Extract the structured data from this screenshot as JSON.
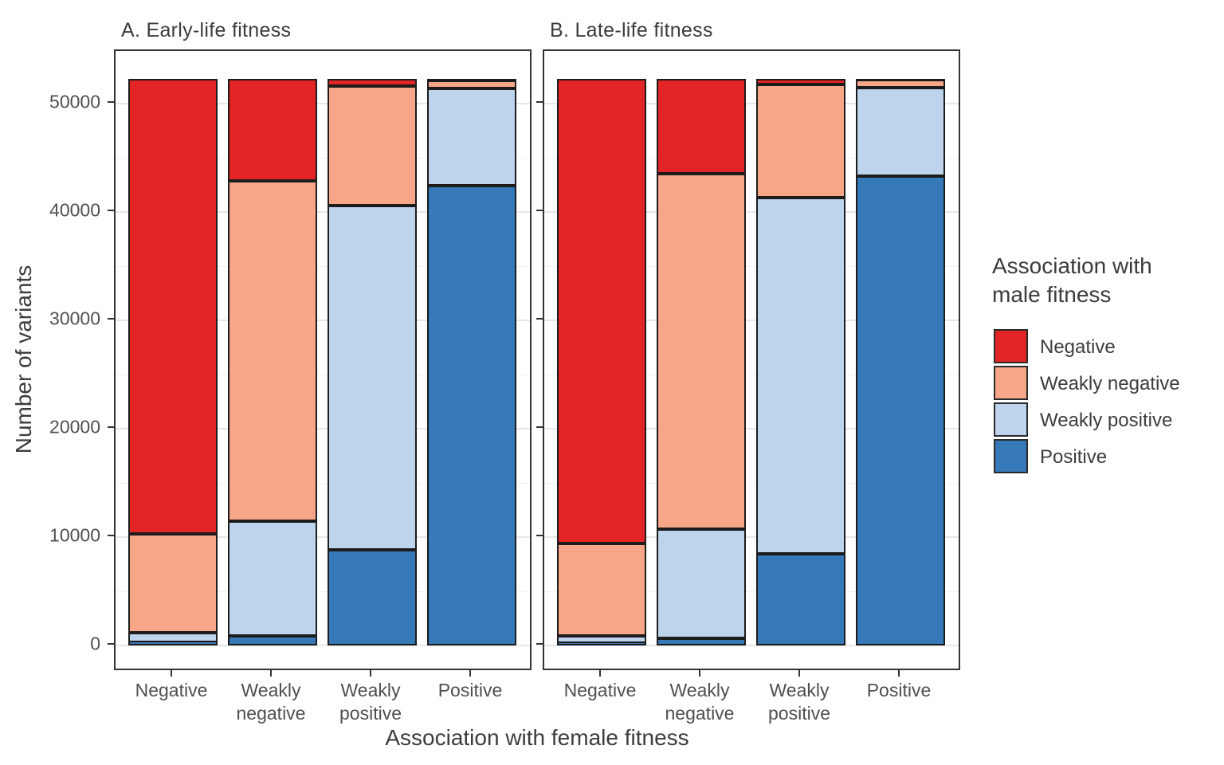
{
  "figure": {
    "kind": "two-panel stacked bar chart",
    "background": "#ffffff"
  },
  "axes": {
    "y_title": "Number of variants",
    "x_title": "Association with female fitness",
    "yticks": [
      0,
      10000,
      20000,
      30000,
      40000,
      50000
    ],
    "ytick_labels": [
      "0",
      "10000",
      "20000",
      "30000",
      "40000",
      "50000"
    ],
    "ylim": [
      0,
      54850
    ],
    "grid": "major and minor horizontal gridlines, light gray on white"
  },
  "legend": {
    "title_lines": [
      "Association with",
      "male fitness"
    ],
    "position": "right",
    "items": [
      {
        "label": "Negative",
        "color": "#E32425"
      },
      {
        "label": "Weakly negative",
        "color": "#F7A687"
      },
      {
        "label": "Weakly positive",
        "color": "#BED3EC"
      },
      {
        "label": "Positive",
        "color": "#3679B8"
      }
    ]
  },
  "chart_data": [
    {
      "type": "bar",
      "stacked": true,
      "panel_title": "A. Early-life fitness",
      "categories": [
        "Negative",
        "Weakly negative",
        "Weakly positive",
        "Positive"
      ],
      "series": [
        {
          "name": "Negative",
          "color": "#E32425",
          "values": [
            42000,
            9400,
            700,
            150
          ]
        },
        {
          "name": "Weakly negative",
          "color": "#F7A687",
          "values": [
            9100,
            31400,
            11000,
            750
          ]
        },
        {
          "name": "Weakly positive",
          "color": "#BED3EC",
          "values": [
            900,
            10600,
            31800,
            9000
          ]
        },
        {
          "name": "Positive",
          "color": "#3679B8",
          "values": [
            300,
            900,
            8800,
            42400
          ]
        }
      ],
      "stack_order_bottom_to_top": [
        "Positive",
        "Weakly positive",
        "Weakly negative",
        "Negative"
      ],
      "bar_total": 52300,
      "xlabel": "Association with female fitness",
      "ylabel": "Number of variants",
      "ylim": [
        0,
        54850
      ],
      "bar_border_color": "#1c1c1c"
    },
    {
      "type": "bar",
      "stacked": true,
      "panel_title": "B. Late-life fitness",
      "categories": [
        "Negative",
        "Weakly negative",
        "Weakly positive",
        "Positive"
      ],
      "series": [
        {
          "name": "Negative",
          "color": "#E32425",
          "values": [
            42900,
            8800,
            500,
            100
          ]
        },
        {
          "name": "Weakly negative",
          "color": "#F7A687",
          "values": [
            8550,
            32750,
            10450,
            750
          ]
        },
        {
          "name": "Weakly positive",
          "color": "#BED3EC",
          "values": [
            650,
            10100,
            32900,
            8150
          ]
        },
        {
          "name": "Positive",
          "color": "#3679B8",
          "values": [
            200,
            650,
            8450,
            43300
          ]
        }
      ],
      "stack_order_bottom_to_top": [
        "Positive",
        "Weakly positive",
        "Weakly negative",
        "Negative"
      ],
      "bar_total": 52300,
      "xlabel": "Association with female fitness",
      "ylabel": "Number of variants",
      "ylim": [
        0,
        54850
      ],
      "bar_border_color": "#1c1c1c"
    }
  ]
}
